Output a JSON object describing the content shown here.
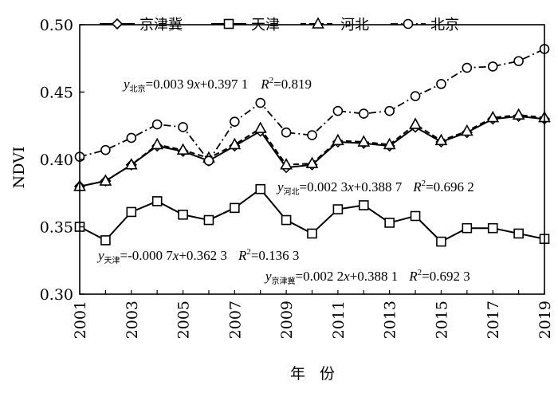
{
  "chart_data": {
    "type": "line",
    "ylabel": "NDVI",
    "xlabel": "年 份",
    "ylim": [
      0.3,
      0.5
    ],
    "yticks": [
      "0.30",
      "0.35",
      "0.40",
      "0.45",
      "0.50"
    ],
    "xlim": [
      2001,
      2019
    ],
    "xticks": [
      "2001",
      "2003",
      "2005",
      "2007",
      "2009",
      "2011",
      "2013",
      "2015",
      "2017",
      "2019"
    ],
    "legend_position": "top",
    "x": [
      2001,
      2002,
      2003,
      2004,
      2005,
      2006,
      2007,
      2008,
      2009,
      2010,
      2011,
      2012,
      2013,
      2014,
      2015,
      2016,
      2017,
      2018,
      2019
    ],
    "series": [
      {
        "name": "京津冀",
        "marker": "diamond",
        "line": "solid",
        "values": [
          0.38,
          0.384,
          0.396,
          0.41,
          0.406,
          0.399,
          0.41,
          0.421,
          0.394,
          0.396,
          0.413,
          0.412,
          0.41,
          0.424,
          0.413,
          0.42,
          0.43,
          0.432,
          0.43
        ]
      },
      {
        "name": "天津",
        "marker": "square",
        "line": "solid",
        "values": [
          0.35,
          0.34,
          0.361,
          0.369,
          0.359,
          0.355,
          0.364,
          0.378,
          0.355,
          0.345,
          0.363,
          0.366,
          0.353,
          0.358,
          0.339,
          0.349,
          0.349,
          0.345,
          0.341
        ]
      },
      {
        "name": "河北",
        "marker": "triangle",
        "line": "dashed",
        "values": [
          0.38,
          0.384,
          0.396,
          0.411,
          0.407,
          0.401,
          0.411,
          0.423,
          0.396,
          0.397,
          0.414,
          0.413,
          0.411,
          0.426,
          0.414,
          0.421,
          0.431,
          0.433,
          0.431
        ]
      },
      {
        "name": "北京",
        "marker": "circle",
        "line": "dashdot",
        "values": [
          0.402,
          0.407,
          0.416,
          0.426,
          0.424,
          0.399,
          0.428,
          0.442,
          0.42,
          0.418,
          0.436,
          0.434,
          0.436,
          0.447,
          0.456,
          0.468,
          0.469,
          0.473,
          0.482
        ]
      }
    ],
    "annotations": {
      "beijing": {
        "y": "y",
        "sub": "北京",
        "eq": "=0.003 9",
        "x": "x",
        "rest": "+0.397 1",
        "r": "R",
        "sup": "2",
        "r2": "=0.819"
      },
      "hebei": {
        "y": "y",
        "sub": "河北",
        "eq": "=0.002 3",
        "x": "x",
        "rest": "+0.388 7",
        "r": "R",
        "sup": "2",
        "r2": "=0.696 2"
      },
      "tianjin": {
        "y": "y",
        "sub": "天津",
        "eq": "=-0.000 7",
        "x": "x",
        "rest": "+0.362 3",
        "r": "R",
        "sup": "2",
        "r2": "=0.136 3"
      },
      "jjj": {
        "y": "y",
        "sub": "京津冀",
        "eq": "=0.002 2",
        "x": "x",
        "rest": "+0.388 1",
        "r": "R",
        "sup": "2",
        "r2": "=0.692 3"
      }
    }
  }
}
